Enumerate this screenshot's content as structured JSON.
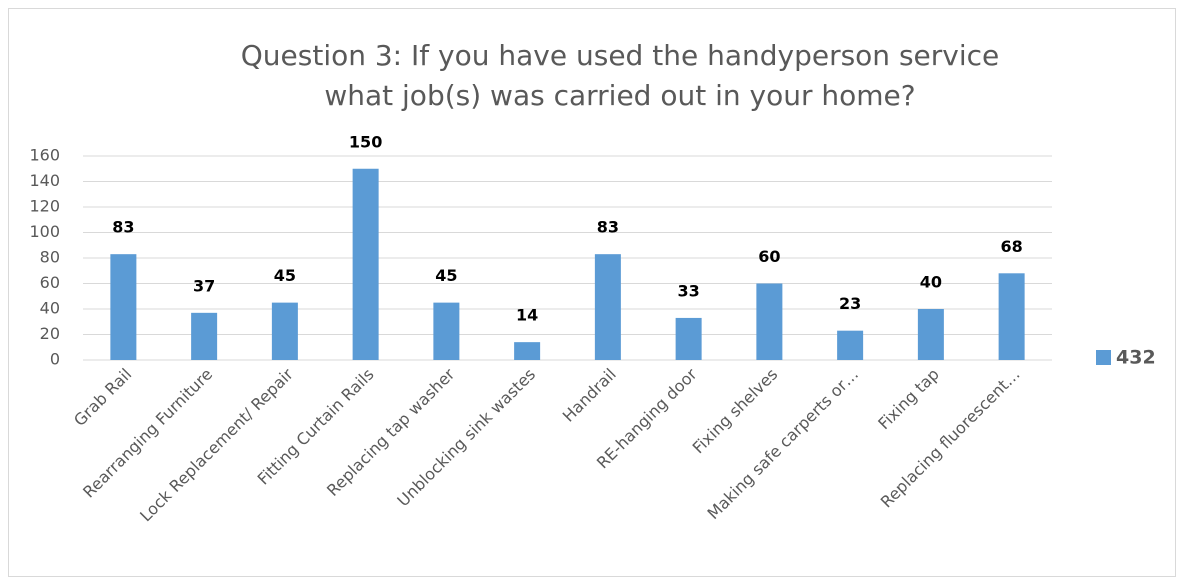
{
  "chart_data": {
    "type": "bar",
    "title": "Question 3: If you have used the handyperson service what job(s) was carried out in your home?",
    "categories": [
      "Grab Rail",
      "Rearranging Furniture",
      "Lock Replacement/ Repair",
      "Fitting Curtain Rails",
      "Replacing tap washer",
      "Unblocking sink wastes",
      "Handrail",
      "RE-hanging door",
      "Fixing shelves",
      "Making safe carperts or…",
      "Fixing tap",
      "Replacing fluorescent…"
    ],
    "series": [
      {
        "name": "432",
        "color": "#5b9bd5",
        "values": [
          83,
          37,
          45,
          150,
          45,
          14,
          83,
          33,
          60,
          23,
          40,
          68
        ]
      }
    ],
    "ylim": [
      0,
      160
    ],
    "yticks": [
      0,
      20,
      40,
      60,
      80,
      100,
      120,
      140,
      160
    ],
    "grid": true,
    "legend": "right"
  }
}
